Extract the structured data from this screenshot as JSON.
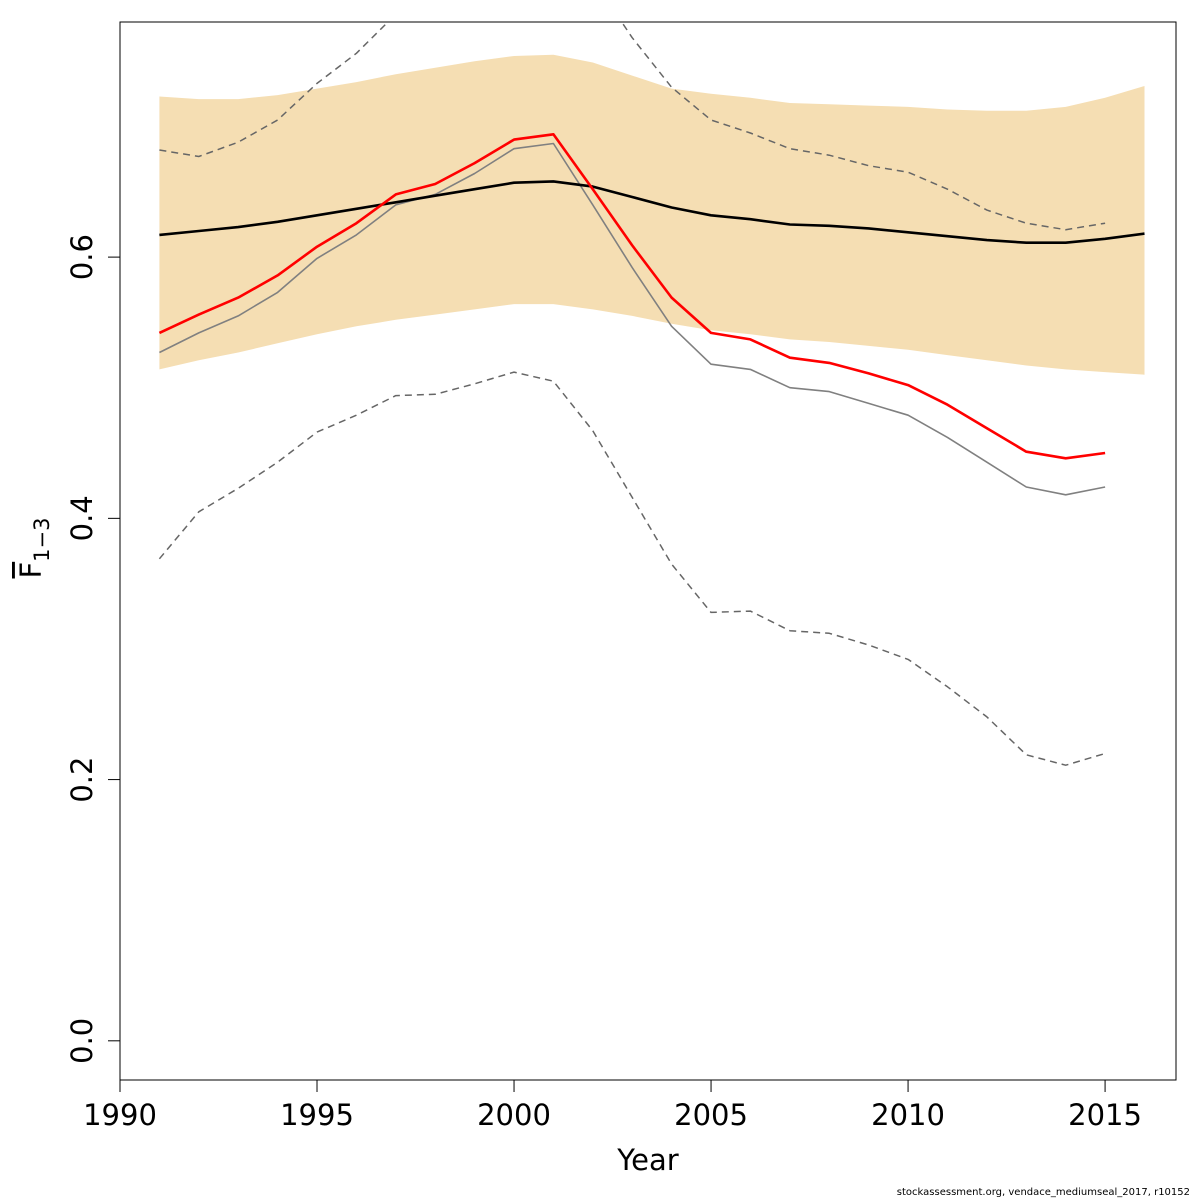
{
  "footer": "stockassessment.org, vendace_mediumseal_2017, r10152",
  "chart_data": {
    "type": "line",
    "title": "",
    "xlabel": "Year",
    "ylabel_main": "F",
    "ylabel_sub": "1−3",
    "xlim": [
      1990,
      2016.8
    ],
    "ylim": [
      -0.03,
      0.78
    ],
    "xticks": [
      "1990",
      "1995",
      "2000",
      "2005",
      "2010",
      "2015"
    ],
    "yticks": [
      "0.0",
      "0.2",
      "0.4",
      "0.6"
    ],
    "grid": false,
    "colors": {
      "band": "#F5DEB3",
      "prior_median": "#000000",
      "red_line": "#FF0000",
      "gray_line": "#808080",
      "dashed": "#666666"
    },
    "band": {
      "x": [
        1991,
        1992,
        1993,
        1994,
        1995,
        1996,
        1997,
        1998,
        1999,
        2000,
        2001,
        2002,
        2003,
        2004,
        2005,
        2006,
        2007,
        2008,
        2009,
        2010,
        2011,
        2012,
        2013,
        2014,
        2015,
        2016
      ],
      "upper": [
        0.723,
        0.721,
        0.721,
        0.724,
        0.729,
        0.734,
        0.74,
        0.745,
        0.75,
        0.754,
        0.755,
        0.749,
        0.739,
        0.729,
        0.725,
        0.722,
        0.718,
        0.717,
        0.716,
        0.715,
        0.713,
        0.712,
        0.712,
        0.715,
        0.722,
        0.731
      ],
      "lower": [
        0.514,
        0.521,
        0.527,
        0.534,
        0.541,
        0.547,
        0.552,
        0.556,
        0.56,
        0.564,
        0.564,
        0.56,
        0.555,
        0.549,
        0.544,
        0.541,
        0.537,
        0.535,
        0.532,
        0.529,
        0.525,
        0.521,
        0.517,
        0.514,
        0.512,
        0.51
      ]
    },
    "series": [
      {
        "role": "prior_median",
        "x": [
          1991,
          1992,
          1993,
          1994,
          1995,
          1996,
          1997,
          1998,
          1999,
          2000,
          2001,
          2002,
          2003,
          2004,
          2005,
          2006,
          2007,
          2008,
          2009,
          2010,
          2011,
          2012,
          2013,
          2014,
          2015,
          2016
        ],
        "values": [
          0.617,
          0.62,
          0.623,
          0.627,
          0.632,
          0.637,
          0.642,
          0.647,
          0.652,
          0.657,
          0.658,
          0.654,
          0.646,
          0.638,
          0.632,
          0.629,
          0.625,
          0.624,
          0.622,
          0.619,
          0.616,
          0.613,
          0.611,
          0.611,
          0.614,
          0.618
        ],
        "style": "solid-bold"
      },
      {
        "role": "red",
        "x": [
          1991,
          1992,
          1993,
          1994,
          1995,
          1996,
          1997,
          1998,
          1999,
          2000,
          2001,
          2002,
          2003,
          2004,
          2005,
          2006,
          2007,
          2008,
          2009,
          2010,
          2011,
          2012,
          2013,
          2014,
          2015
        ],
        "values": [
          0.542,
          0.556,
          0.569,
          0.586,
          0.608,
          0.626,
          0.648,
          0.656,
          0.672,
          0.69,
          0.694,
          0.652,
          0.609,
          0.569,
          0.542,
          0.537,
          0.523,
          0.519,
          0.511,
          0.502,
          0.487,
          0.469,
          0.451,
          0.446,
          0.45
        ],
        "style": "solid-red"
      },
      {
        "role": "gray",
        "x": [
          1991,
          1992,
          1993,
          1994,
          1995,
          1996,
          1997,
          1998,
          1999,
          2000,
          2001,
          2002,
          2003,
          2004,
          2005,
          2006,
          2007,
          2008,
          2009,
          2010,
          2011,
          2012,
          2013,
          2014,
          2015
        ],
        "values": [
          0.527,
          0.542,
          0.555,
          0.573,
          0.599,
          0.617,
          0.64,
          0.648,
          0.664,
          0.683,
          0.687,
          0.64,
          0.592,
          0.547,
          0.518,
          0.514,
          0.5,
          0.497,
          0.488,
          0.479,
          0.462,
          0.443,
          0.424,
          0.418,
          0.424
        ],
        "style": "solid-gray"
      },
      {
        "role": "dashed_upper",
        "x": [
          1991,
          1992,
          1993,
          1994,
          1995,
          1996,
          1997,
          2002.6,
          2003,
          2004,
          2005,
          2006,
          2007,
          2008,
          2009,
          2010,
          2011,
          2012,
          2013,
          2014,
          2015
        ],
        "values": [
          0.682,
          0.677,
          0.688,
          0.705,
          0.733,
          0.756,
          0.786,
          0.786,
          0.768,
          0.73,
          0.705,
          0.695,
          0.683,
          0.678,
          0.67,
          0.665,
          0.652,
          0.636,
          0.626,
          0.621,
          0.626
        ],
        "gap_after_index": 6,
        "style": "dashed"
      },
      {
        "role": "dashed_lower",
        "x": [
          1991,
          1992,
          1993,
          1994,
          1995,
          1996,
          1997,
          1998,
          1999,
          2000,
          2001,
          2002,
          2003,
          2004,
          2005,
          2006,
          2007,
          2008,
          2009,
          2010,
          2011,
          2012,
          2013,
          2014,
          2015
        ],
        "values": [
          0.369,
          0.405,
          0.423,
          0.443,
          0.466,
          0.479,
          0.494,
          0.495,
          0.503,
          0.512,
          0.505,
          0.467,
          0.416,
          0.365,
          0.328,
          0.329,
          0.314,
          0.312,
          0.303,
          0.292,
          0.271,
          0.248,
          0.219,
          0.211,
          0.22
        ],
        "style": "dashed"
      }
    ]
  }
}
